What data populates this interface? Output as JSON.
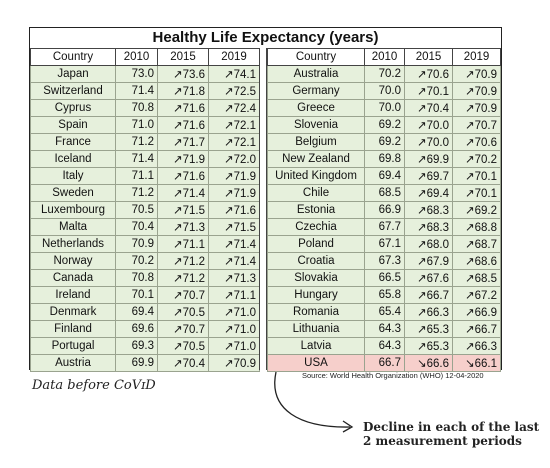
{
  "chart_data": {
    "type": "table",
    "title": "Healthy Life Expectancy (years)",
    "columns": [
      "Country",
      "2010",
      "2015",
      "2019"
    ],
    "tables": [
      {
        "rows": [
          {
            "country": "Japan",
            "y2010": "73.0",
            "y2015": "↗73.6",
            "y2019": "↗74.1"
          },
          {
            "country": "Switzerland",
            "y2010": "71.4",
            "y2015": "↗71.8",
            "y2019": "↗72.5"
          },
          {
            "country": "Cyprus",
            "y2010": "70.8",
            "y2015": "↗71.6",
            "y2019": "↗72.4"
          },
          {
            "country": "Spain",
            "y2010": "71.0",
            "y2015": "↗71.6",
            "y2019": "↗72.1"
          },
          {
            "country": "France",
            "y2010": "71.2",
            "y2015": "↗71.7",
            "y2019": "↗72.1"
          },
          {
            "country": "Iceland",
            "y2010": "71.4",
            "y2015": "↗71.9",
            "y2019": "↗72.0"
          },
          {
            "country": "Italy",
            "y2010": "71.1",
            "y2015": "↗71.6",
            "y2019": "↗71.9"
          },
          {
            "country": "Sweden",
            "y2010": "71.2",
            "y2015": "↗71.4",
            "y2019": "↗71.9"
          },
          {
            "country": "Luxembourg",
            "y2010": "70.5",
            "y2015": "↗71.5",
            "y2019": "↗71.6"
          },
          {
            "country": "Malta",
            "y2010": "70.4",
            "y2015": "↗71.3",
            "y2019": "↗71.5"
          },
          {
            "country": "Netherlands",
            "y2010": "70.9",
            "y2015": "↗71.1",
            "y2019": "↗71.4"
          },
          {
            "country": "Norway",
            "y2010": "70.2",
            "y2015": "↗71.2",
            "y2019": "↗71.4"
          },
          {
            "country": "Canada",
            "y2010": "70.8",
            "y2015": "↗71.2",
            "y2019": "↗71.3"
          },
          {
            "country": "Ireland",
            "y2010": "70.1",
            "y2015": "↗70.7",
            "y2019": "↗71.1"
          },
          {
            "country": "Denmark",
            "y2010": "69.4",
            "y2015": "↗70.5",
            "y2019": "↗71.0"
          },
          {
            "country": "Finland",
            "y2010": "69.6",
            "y2015": "↗70.7",
            "y2019": "↗71.0"
          },
          {
            "country": "Portugal",
            "y2010": "69.3",
            "y2015": "↗70.5",
            "y2019": "↗71.0"
          },
          {
            "country": "Austria",
            "y2010": "69.9",
            "y2015": "↗70.4",
            "y2019": "↗70.9"
          }
        ]
      },
      {
        "rows": [
          {
            "country": "Australia",
            "y2010": "70.2",
            "y2015": "↗70.6",
            "y2019": "↗70.9"
          },
          {
            "country": "Germany",
            "y2010": "70.0",
            "y2015": "↗70.1",
            "y2019": "↗70.9"
          },
          {
            "country": "Greece",
            "y2010": "70.0",
            "y2015": "↗70.4",
            "y2019": "↗70.9"
          },
          {
            "country": "Slovenia",
            "y2010": "69.2",
            "y2015": "↗70.0",
            "y2019": "↗70.7"
          },
          {
            "country": "Belgium",
            "y2010": "69.2",
            "y2015": "↗70.0",
            "y2019": "↗70.6"
          },
          {
            "country": "New Zealand",
            "y2010": "69.8",
            "y2015": "↗69.9",
            "y2019": "↗70.2"
          },
          {
            "country": "United Kingdom",
            "y2010": "69.4",
            "y2015": "↗69.7",
            "y2019": "↗70.1"
          },
          {
            "country": "Chile",
            "y2010": "68.5",
            "y2015": "↗69.4",
            "y2019": "↗70.1"
          },
          {
            "country": "Estonia",
            "y2010": "66.9",
            "y2015": "↗68.3",
            "y2019": "↗69.2"
          },
          {
            "country": "Czechia",
            "y2010": "67.7",
            "y2015": "↗68.3",
            "y2019": "↗68.8"
          },
          {
            "country": "Poland",
            "y2010": "67.1",
            "y2015": "↗68.0",
            "y2019": "↗68.7"
          },
          {
            "country": "Croatia",
            "y2010": "67.3",
            "y2015": "↗67.9",
            "y2019": "↗68.6"
          },
          {
            "country": "Slovakia",
            "y2010": "66.5",
            "y2015": "↗67.6",
            "y2019": "↗68.5"
          },
          {
            "country": "Hungary",
            "y2010": "65.8",
            "y2015": "↗66.7",
            "y2019": "↗67.2"
          },
          {
            "country": "Romania",
            "y2010": "65.4",
            "y2015": "↗66.3",
            "y2019": "↗66.9"
          },
          {
            "country": "Lithuania",
            "y2010": "64.3",
            "y2015": "↗65.3",
            "y2019": "↗66.7"
          },
          {
            "country": "Latvia",
            "y2010": "64.3",
            "y2015": "↗65.3",
            "y2019": "↗66.3"
          },
          {
            "country": "USA",
            "y2010": "66.7",
            "y2015": "↘66.6",
            "y2019": "↘66.1",
            "highlight": true
          }
        ]
      }
    ],
    "source": "Source: World Health Organization (WHO) 12-04-2020"
  },
  "notes": {
    "covid": "Data before CoVɪD",
    "decline_line1": "Decline in each of the last",
    "decline_line2": "2 measurement periods"
  },
  "colors": {
    "increase_bg": "#e6f0dc",
    "decline_bg": "#f6cfcb"
  }
}
